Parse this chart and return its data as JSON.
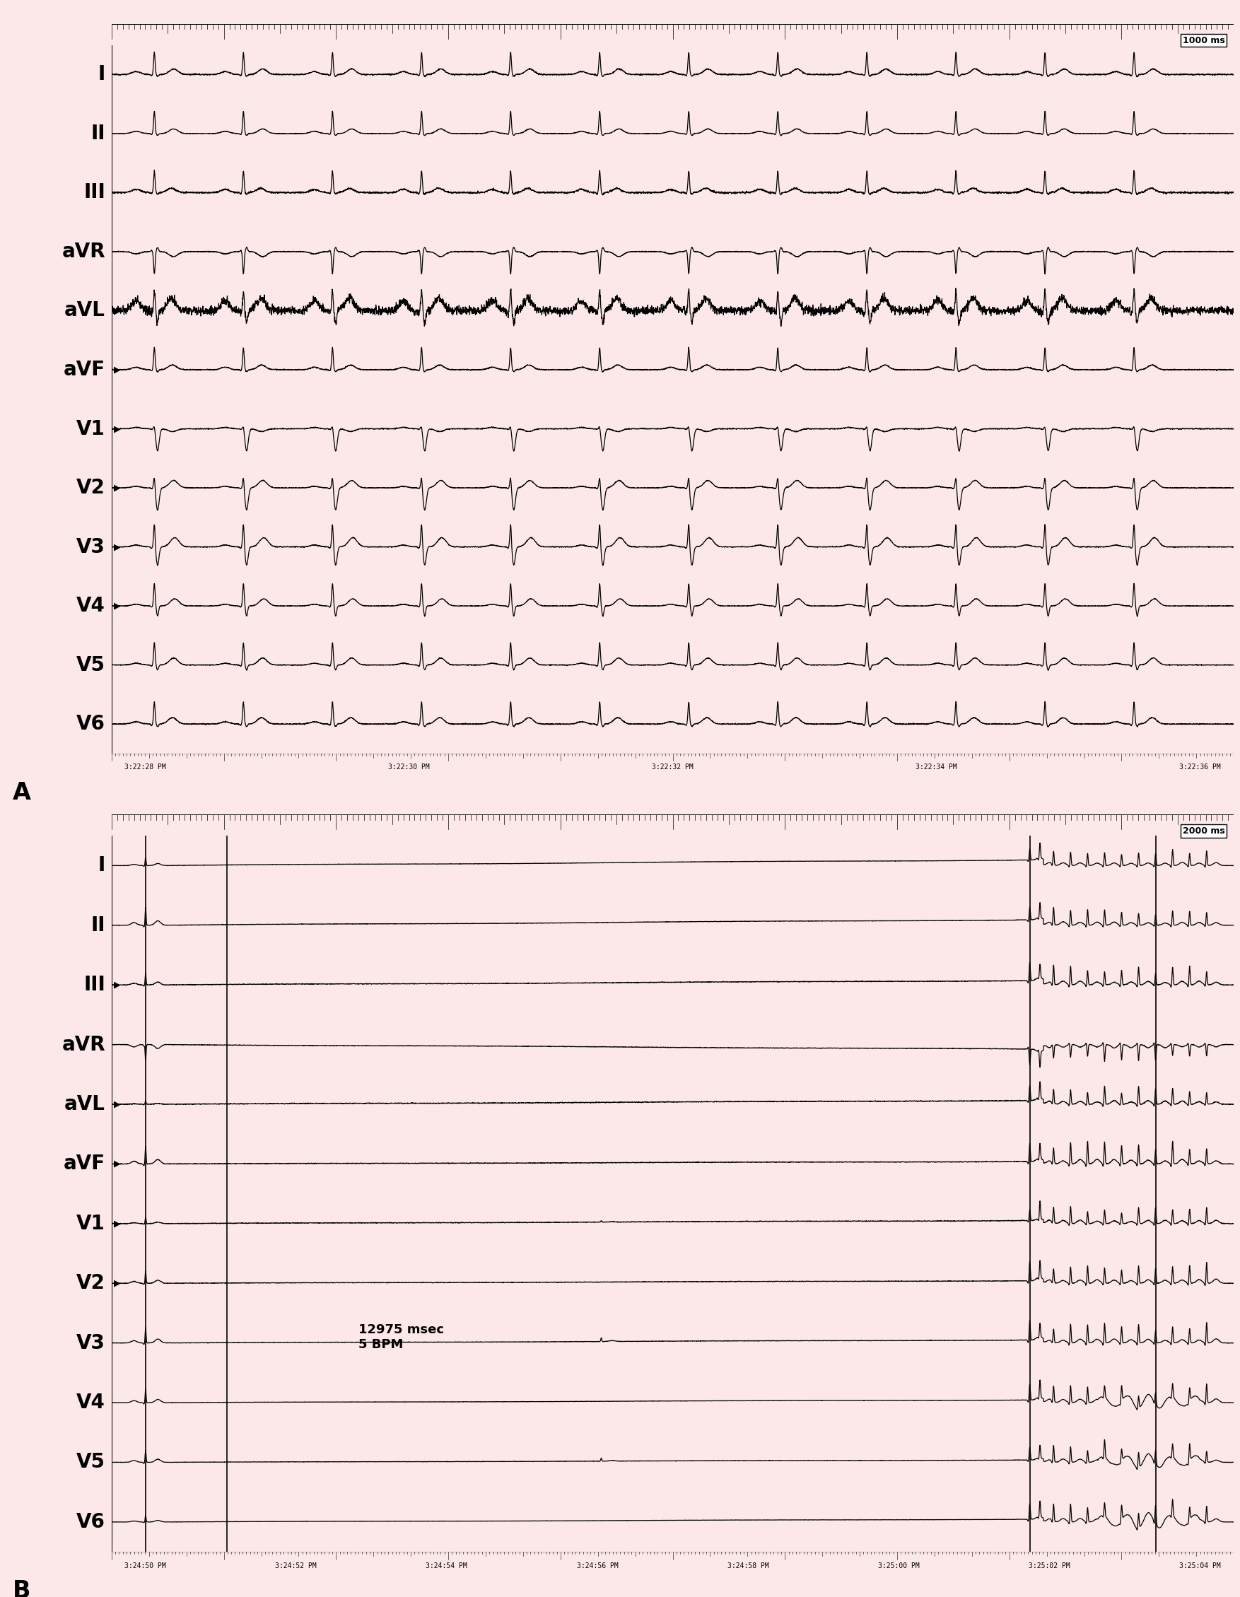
{
  "background_color": "#fce8e8",
  "panel_A_leads": [
    "I",
    "II",
    "III",
    "aVR",
    "aVL",
    "aVF",
    "V1",
    "V2",
    "V3",
    "V4",
    "V5",
    "V6"
  ],
  "panel_B_leads": [
    "I",
    "II",
    "III",
    "aVR",
    "aVL",
    "aVF",
    "V1",
    "V2",
    "V3",
    "V4",
    "V5",
    "V6"
  ],
  "panel_A_label": "A",
  "panel_B_label": "B",
  "panel_A_timescale": "1000 ms",
  "panel_B_timescale": "2000 ms",
  "panel_A_timestamps": [
    "3:22:28 PM",
    "3:22:30 PM",
    "3:22:32 PM",
    "3:22:34 PM",
    "3:22:36 PM"
  ],
  "panel_B_timestamps": [
    "3:24:50 PM",
    "3:24:52 PM",
    "3:24:54 PM",
    "3:24:56 PM",
    "3:24:58 PM",
    "3:25:00 PM",
    "3:25:02 PM",
    "3:25:04 PM"
  ],
  "annotation_text": "12975 msec\n5 BPM",
  "line_color": "#000000",
  "label_fontsize": 20,
  "ts_fontsize": 7,
  "annotation_fontsize": 13,
  "timescale_fontsize": 9,
  "arrow_leads_A": [
    "aVL",
    "aVF",
    "V1",
    "V2",
    "V3",
    "V4"
  ],
  "arrow_leads_B": [
    "III",
    "aVL",
    "aVF",
    "V1",
    "V2"
  ]
}
